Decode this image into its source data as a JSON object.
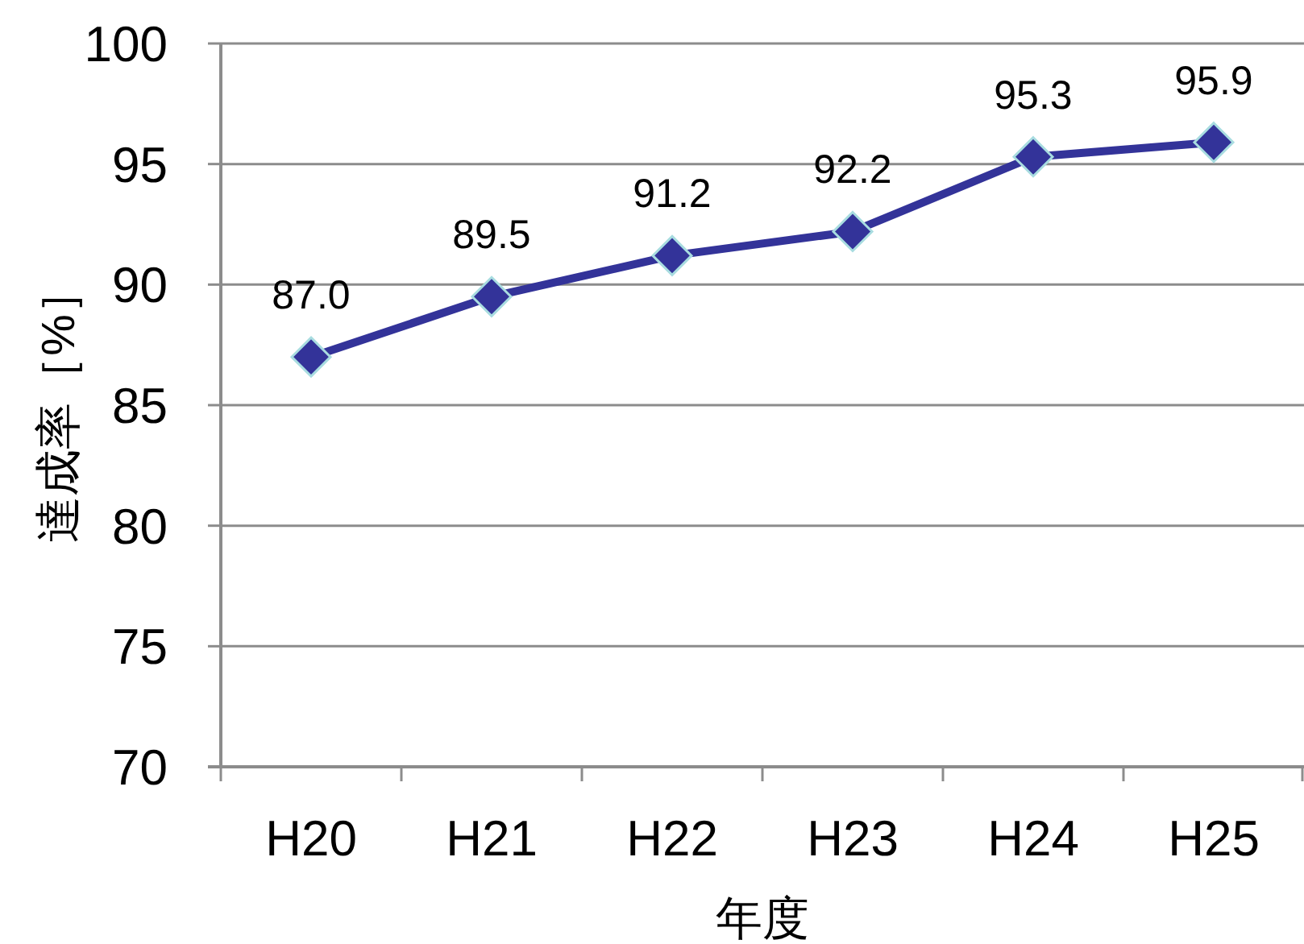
{
  "chart_data": {
    "type": "line",
    "xlabel": "年度",
    "ylabel": "達成率［%］",
    "categories": [
      "H20",
      "H21",
      "H22",
      "H23",
      "H24",
      "H25"
    ],
    "series": [
      {
        "color": "#333399",
        "values": [
          87.0,
          89.5,
          91.2,
          92.2,
          95.3,
          95.9
        ],
        "value_labels": [
          "87.0",
          "89.5",
          "91.2",
          "92.2",
          "95.3",
          "95.9"
        ]
      }
    ],
    "ylim": [
      70,
      100
    ],
    "yticks": [
      70,
      75,
      80,
      85,
      90,
      95,
      100
    ],
    "grid": "y",
    "marker": "diamond",
    "line_style": "solid"
  }
}
